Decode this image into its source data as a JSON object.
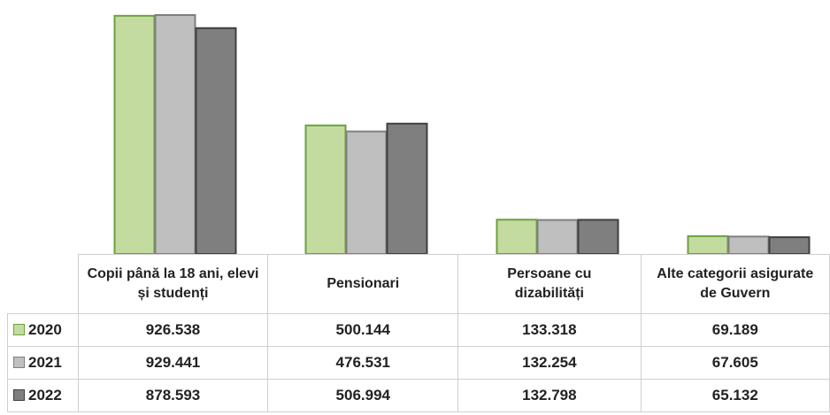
{
  "chart_data": {
    "type": "bar",
    "categories": [
      "Copii până la 18 ani, elevi și studenți",
      "Pensionari",
      "Persoane cu dizabilități",
      "Alte categorii asigurate de Guvern"
    ],
    "series": [
      {
        "name": "2020",
        "color": "#c4dba0",
        "values": [
          926538,
          500144,
          133318,
          69189
        ],
        "value_labels": [
          "926.538",
          "500.144",
          "133.318",
          "69.189"
        ]
      },
      {
        "name": "2021",
        "color": "#bfbfbf",
        "values": [
          929441,
          476531,
          132254,
          67605
        ],
        "value_labels": [
          "929.441",
          "476.531",
          "132.254",
          "67.605"
        ]
      },
      {
        "name": "2022",
        "color": "#7f7f7f",
        "values": [
          878593,
          506994,
          132798,
          65132
        ],
        "value_labels": [
          "878.593",
          "506.994",
          "132.798",
          "65.132"
        ]
      }
    ],
    "legend": "table"
  }
}
